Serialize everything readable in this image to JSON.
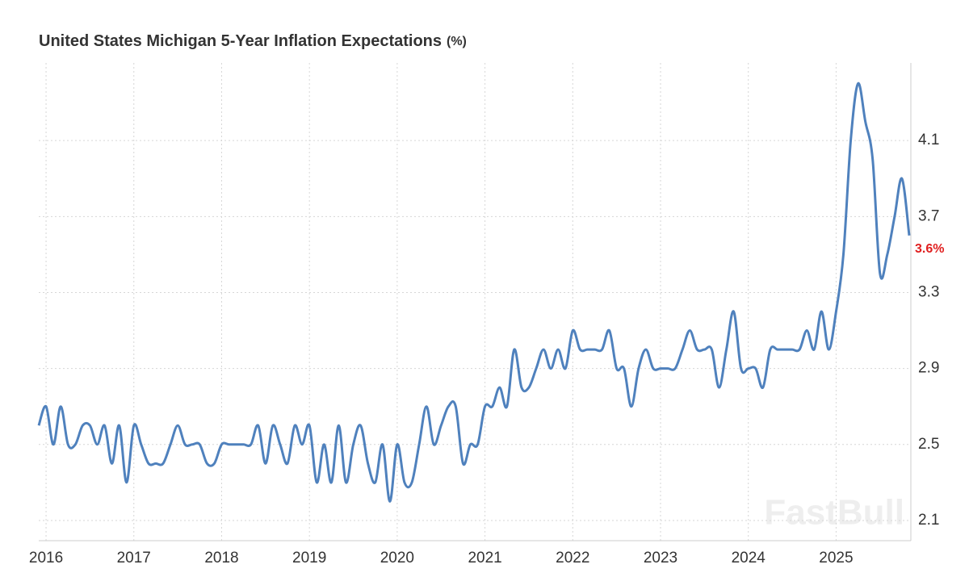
{
  "chart_data": {
    "type": "line",
    "title": "United States Michigan 5-Year Inflation Expectations",
    "unit": "(%)",
    "watermark": "FastBull",
    "end_label": "3.6%",
    "x": [
      "2015-12",
      "2016-01",
      "2016-02",
      "2016-03",
      "2016-04",
      "2016-05",
      "2016-06",
      "2016-07",
      "2016-08",
      "2016-09",
      "2016-10",
      "2016-11",
      "2016-12",
      "2017-01",
      "2017-02",
      "2017-03",
      "2017-04",
      "2017-05",
      "2017-06",
      "2017-07",
      "2017-08",
      "2017-09",
      "2017-10",
      "2017-11",
      "2017-12",
      "2018-01",
      "2018-02",
      "2018-03",
      "2018-04",
      "2018-05",
      "2018-06",
      "2018-07",
      "2018-08",
      "2018-09",
      "2018-10",
      "2018-11",
      "2018-12",
      "2019-01",
      "2019-02",
      "2019-03",
      "2019-04",
      "2019-05",
      "2019-06",
      "2019-07",
      "2019-08",
      "2019-09",
      "2019-10",
      "2019-11",
      "2019-12",
      "2020-01",
      "2020-02",
      "2020-03",
      "2020-04",
      "2020-05",
      "2020-06",
      "2020-07",
      "2020-08",
      "2020-09",
      "2020-10",
      "2020-11",
      "2020-12",
      "2021-01",
      "2021-02",
      "2021-03",
      "2021-04",
      "2021-05",
      "2021-06",
      "2021-07",
      "2021-08",
      "2021-09",
      "2021-10",
      "2021-11",
      "2021-12",
      "2022-01",
      "2022-02",
      "2022-03",
      "2022-04",
      "2022-05",
      "2022-06",
      "2022-07",
      "2022-08",
      "2022-09",
      "2022-10",
      "2022-11",
      "2022-12",
      "2023-01",
      "2023-02",
      "2023-03",
      "2023-04",
      "2023-05",
      "2023-06",
      "2023-07",
      "2023-08",
      "2023-09",
      "2023-10",
      "2023-11",
      "2023-12",
      "2024-01",
      "2024-02",
      "2024-03",
      "2024-04",
      "2024-05",
      "2024-06",
      "2024-07",
      "2024-08",
      "2024-09",
      "2024-10",
      "2024-11",
      "2024-12",
      "2025-01",
      "2025-02",
      "2025-03",
      "2025-04",
      "2025-05",
      "2025-06",
      "2025-07",
      "2025-08",
      "2025-09",
      "2025-10",
      "2025-11"
    ],
    "series": [
      {
        "name": "Michigan 5-Year Inflation Expectations",
        "color": "#4f81bd",
        "values": [
          2.6,
          2.7,
          2.5,
          2.7,
          2.5,
          2.5,
          2.6,
          2.6,
          2.5,
          2.6,
          2.4,
          2.6,
          2.3,
          2.6,
          2.5,
          2.4,
          2.4,
          2.4,
          2.5,
          2.6,
          2.5,
          2.5,
          2.5,
          2.4,
          2.4,
          2.5,
          2.5,
          2.5,
          2.5,
          2.5,
          2.6,
          2.4,
          2.6,
          2.5,
          2.4,
          2.6,
          2.5,
          2.6,
          2.3,
          2.5,
          2.3,
          2.6,
          2.3,
          2.5,
          2.6,
          2.4,
          2.3,
          2.5,
          2.2,
          2.5,
          2.3,
          2.3,
          2.5,
          2.7,
          2.5,
          2.6,
          2.7,
          2.7,
          2.4,
          2.5,
          2.5,
          2.7,
          2.7,
          2.8,
          2.7,
          3.0,
          2.8,
          2.8,
          2.9,
          3.0,
          2.9,
          3.0,
          2.9,
          3.1,
          3.0,
          3.0,
          3.0,
          3.0,
          3.1,
          2.9,
          2.9,
          2.7,
          2.9,
          3.0,
          2.9,
          2.9,
          2.9,
          2.9,
          3.0,
          3.1,
          3.0,
          3.0,
          3.0,
          2.8,
          3.0,
          3.2,
          2.9,
          2.9,
          2.9,
          2.8,
          3.0,
          3.0,
          3.0,
          3.0,
          3.0,
          3.1,
          3.0,
          3.2,
          3.0,
          3.2,
          3.5,
          4.1,
          4.4,
          4.2,
          4.0,
          3.4,
          3.5,
          3.7,
          3.9,
          3.6
        ]
      }
    ],
    "xlim": [
      "2015-12",
      "2025-11"
    ],
    "xticks": [
      "2016",
      "2017",
      "2018",
      "2019",
      "2020",
      "2021",
      "2022",
      "2023",
      "2024",
      "2025"
    ],
    "ylim": [
      2.0,
      4.5
    ],
    "yticks": [
      2.1,
      2.5,
      2.9,
      3.3,
      3.7,
      4.1
    ],
    "grid": true
  }
}
